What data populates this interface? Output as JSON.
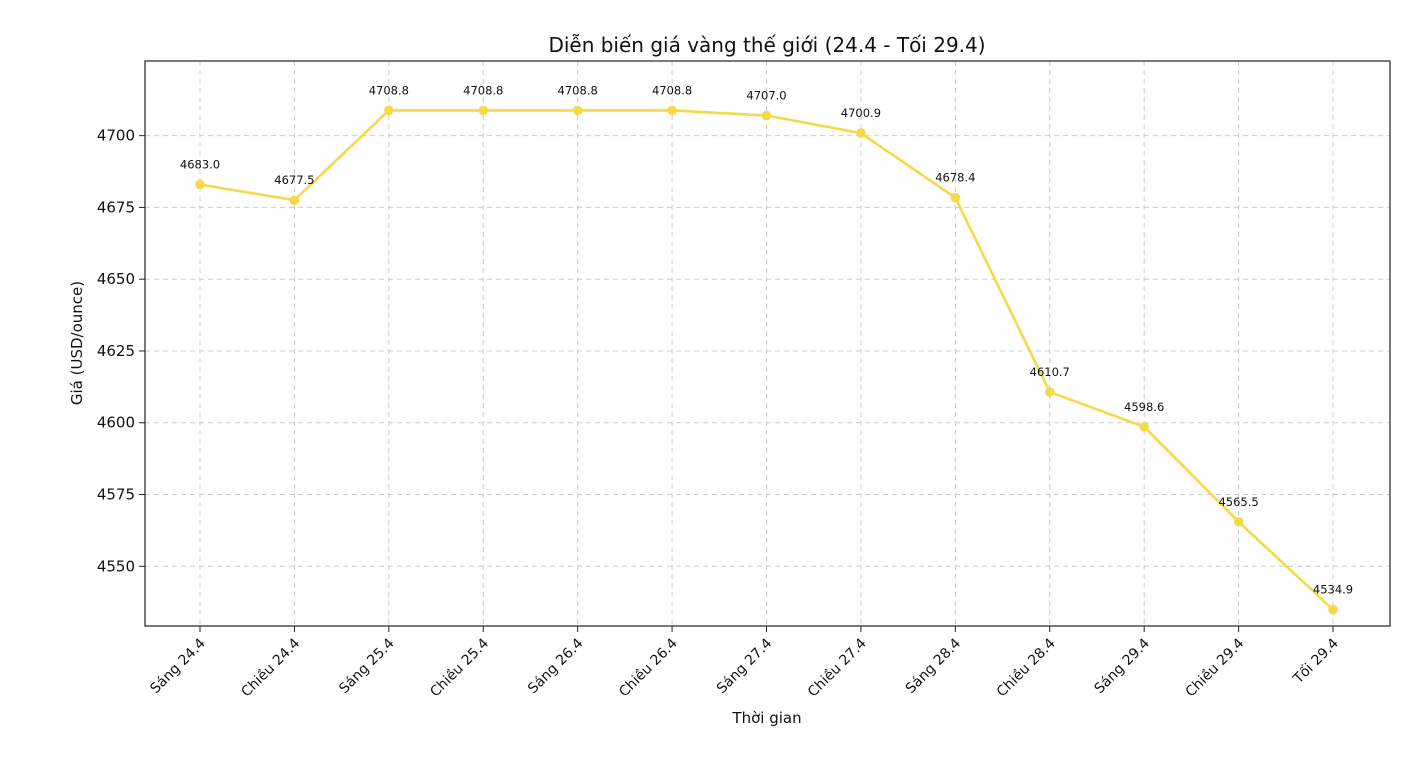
{
  "chart_data": {
    "type": "line",
    "title": "Diễn biến giá vàng thế giới (24.4 - Tối 29.4)",
    "xlabel": "Thời gian",
    "ylabel": "Giá (USD/ounce)",
    "categories": [
      "Sáng 24.4",
      "Chiều 24.4",
      "Sáng 25.4",
      "Chiều 25.4",
      "Sáng 26.4",
      "Chiều 26.4",
      "Sáng 27.4",
      "Chiều 27.4",
      "Sáng 28.4",
      "Chiều 28.4",
      "Sáng 29.4",
      "Chiều 29.4",
      "Tối 29.4"
    ],
    "values": [
      4683.0,
      4677.5,
      4708.8,
      4708.8,
      4708.8,
      4708.8,
      4707.0,
      4700.9,
      4678.4,
      4610.7,
      4598.6,
      4565.5,
      4534.9
    ],
    "data_labels": [
      "4683.0",
      "4677.5",
      "4708.8",
      "4708.8",
      "4708.8",
      "4708.8",
      "4707.0",
      "4700.9",
      "4678.4",
      "4610.7",
      "4598.6",
      "4565.5",
      "4534.9"
    ],
    "yticks": [
      4550,
      4575,
      4600,
      4625,
      4650,
      4675,
      4700
    ],
    "ylim": [
      4529.2,
      4726.0
    ],
    "grid": true,
    "line_color": "#f5d94a"
  }
}
